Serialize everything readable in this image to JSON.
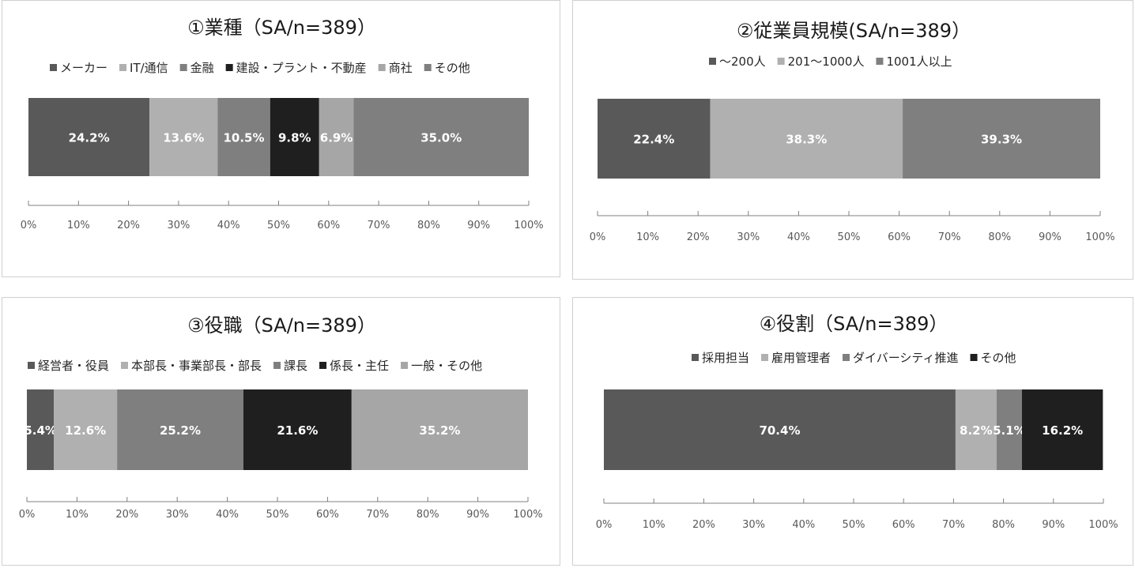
{
  "chart_data": [
    {
      "type": "bar",
      "orientation": "horizontal-stacked-100",
      "title": "①業種（SA/n=389）",
      "series": [
        {
          "name": "メーカー",
          "value": 24.2,
          "label": "24.2%",
          "color": "#595959"
        },
        {
          "name": "IT/通信",
          "value": 13.6,
          "label": "13.6%",
          "color": "#b0b0b0"
        },
        {
          "name": "金融",
          "value": 10.5,
          "label": "10.5%",
          "color": "#7f7f7f"
        },
        {
          "name": "建設・プラント・不動産",
          "value": 9.8,
          "label": "9.8%",
          "color": "#1f1f1f"
        },
        {
          "name": "商社",
          "value": 6.9,
          "label": "6.9%",
          "color": "#a6a6a6"
        },
        {
          "name": "その他",
          "value": 35.0,
          "label": "35.0%",
          "color": "#7f7f7f"
        }
      ],
      "x_ticks": [
        "0%",
        "10%",
        "20%",
        "30%",
        "40%",
        "50%",
        "60%",
        "70%",
        "80%",
        "90%",
        "100%"
      ],
      "xlim": [
        0,
        100
      ],
      "legend_position": "top",
      "grid": false
    },
    {
      "type": "bar",
      "orientation": "horizontal-stacked-100",
      "title": "②従業員規模(SA/n=389）",
      "series": [
        {
          "name": "～200人",
          "value": 22.4,
          "label": "22.4%",
          "color": "#595959"
        },
        {
          "name": "201～1000人",
          "value": 38.3,
          "label": "38.3%",
          "color": "#b0b0b0"
        },
        {
          "name": "1001人以上",
          "value": 39.3,
          "label": "39.3%",
          "color": "#7f7f7f"
        }
      ],
      "x_ticks": [
        "0%",
        "10%",
        "20%",
        "30%",
        "40%",
        "50%",
        "60%",
        "70%",
        "80%",
        "90%",
        "100%"
      ],
      "xlim": [
        0,
        100
      ],
      "legend_position": "top",
      "grid": false
    },
    {
      "type": "bar",
      "orientation": "horizontal-stacked-100",
      "title": "③役職（SA/n=389）",
      "series": [
        {
          "name": "経営者・役員",
          "value": 5.4,
          "label": "5.4%",
          "color": "#595959"
        },
        {
          "name": "本部長・事業部長・部長",
          "value": 12.6,
          "label": "12.6%",
          "color": "#b0b0b0"
        },
        {
          "name": "課長",
          "value": 25.2,
          "label": "25.2%",
          "color": "#7f7f7f"
        },
        {
          "name": "係長・主任",
          "value": 21.6,
          "label": "21.6%",
          "color": "#1f1f1f"
        },
        {
          "name": "一般・その他",
          "value": 35.2,
          "label": "35.2%",
          "color": "#a6a6a6"
        }
      ],
      "x_ticks": [
        "0%",
        "10%",
        "20%",
        "30%",
        "40%",
        "50%",
        "60%",
        "70%",
        "80%",
        "90%",
        "100%"
      ],
      "xlim": [
        0,
        100
      ],
      "legend_position": "top",
      "grid": false
    },
    {
      "type": "bar",
      "orientation": "horizontal-stacked-100",
      "title": "④役割（SA/n=389）",
      "series": [
        {
          "name": "採用担当",
          "value": 70.4,
          "label": "70.4%",
          "color": "#595959"
        },
        {
          "name": "雇用管理者",
          "value": 8.2,
          "label": "8.2%",
          "color": "#b0b0b0"
        },
        {
          "name": "ダイバーシティ推進",
          "value": 5.1,
          "label": "5.1%",
          "color": "#7f7f7f"
        },
        {
          "name": "その他",
          "value": 16.2,
          "label": "16.2%",
          "color": "#1f1f1f"
        }
      ],
      "x_ticks": [
        "0%",
        "10%",
        "20%",
        "30%",
        "40%",
        "50%",
        "60%",
        "70%",
        "80%",
        "90%",
        "100%"
      ],
      "xlim": [
        0,
        100
      ],
      "legend_position": "top",
      "grid": false
    }
  ]
}
